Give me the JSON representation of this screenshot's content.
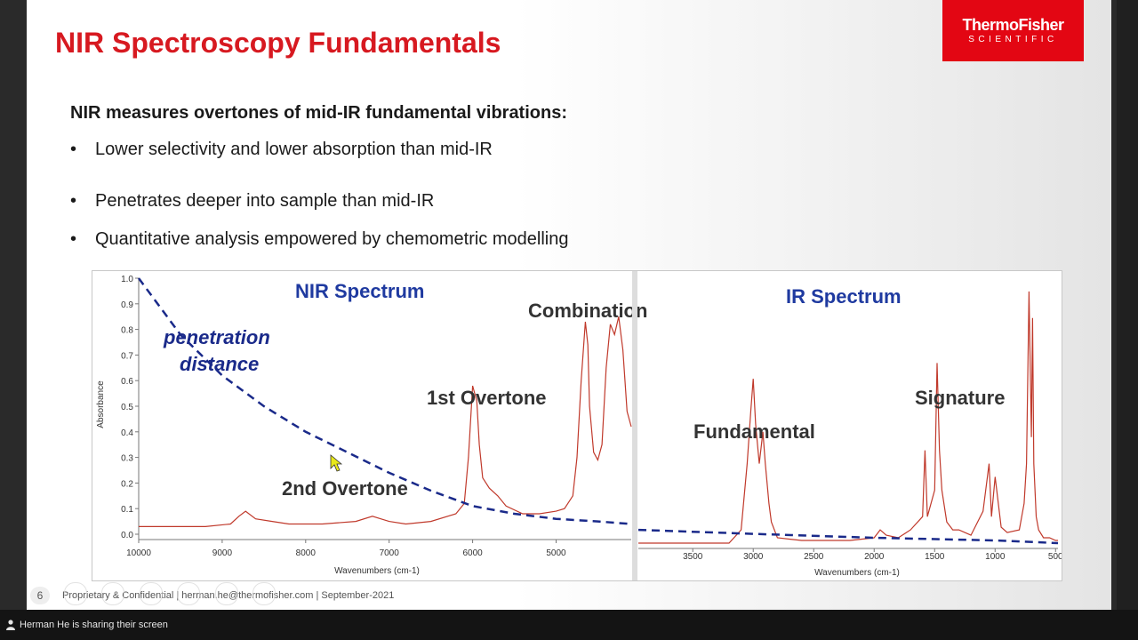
{
  "slide": {
    "title": "NIR Spectroscopy Fundamentals",
    "logo_top": "ThermoFisher",
    "logo_bottom": "SCIENTIFIC",
    "lead": "NIR measures overtones of mid-IR fundamental vibrations:",
    "bullets": [
      "Lower selectivity and lower absorption than mid-IR",
      "Penetrates deeper into sample than mid-IR",
      "Quantitative analysis empowered by chemometric modelling"
    ],
    "page_number": "6",
    "footer": "Proprietary & Confidential | herman.he@thermofisher.com | September-2021"
  },
  "chart_data": [
    {
      "type": "line",
      "title": "NIR Spectrum",
      "xlabel": "Wavenumbers (cm-1)",
      "ylabel": "Absorbance",
      "xlim": [
        10000,
        4100
      ],
      "ylim": [
        0.0,
        1.0
      ],
      "x_ticks": [
        "10000",
        "9000",
        "8000",
        "7000",
        "6000",
        "5000"
      ],
      "y_ticks": [
        "0.0",
        "0.1",
        "0.2",
        "0.3",
        "0.4",
        "0.5",
        "0.6",
        "0.7",
        "0.8",
        "0.9",
        "1.0"
      ],
      "annotations": [
        "penetration distance",
        "2nd Overtone",
        "1st Overtone",
        "Combination"
      ],
      "series": [
        {
          "color": "#c0392b",
          "x": [
            10000,
            9200,
            8900,
            8800,
            8720,
            8600,
            8400,
            8200,
            7800,
            7400,
            7200,
            7100,
            7000,
            6800,
            6500,
            6200,
            6100,
            6050,
            6000,
            5950,
            5920,
            5880,
            5800,
            5700,
            5600,
            5400,
            5200,
            5000,
            4900,
            4800,
            4750,
            4700,
            4650,
            4620,
            4600,
            4550,
            4500,
            4450,
            4400,
            4350,
            4300,
            4250,
            4200,
            4150,
            4100
          ],
          "y": [
            0.03,
            0.03,
            0.04,
            0.07,
            0.09,
            0.06,
            0.05,
            0.04,
            0.04,
            0.05,
            0.07,
            0.06,
            0.05,
            0.04,
            0.05,
            0.08,
            0.12,
            0.3,
            0.58,
            0.52,
            0.35,
            0.22,
            0.18,
            0.15,
            0.11,
            0.08,
            0.08,
            0.09,
            0.1,
            0.15,
            0.3,
            0.6,
            0.83,
            0.74,
            0.5,
            0.32,
            0.29,
            0.35,
            0.65,
            0.82,
            0.78,
            0.85,
            0.72,
            0.48,
            0.42
          ]
        },
        {
          "color": "#1a2a8a",
          "style": "dashed",
          "x": [
            10000,
            9500,
            9000,
            8500,
            8000,
            7500,
            7000,
            6500,
            6000,
            5500,
            5000,
            4500,
            4100
          ],
          "y": [
            1.0,
            0.78,
            0.62,
            0.5,
            0.4,
            0.32,
            0.24,
            0.17,
            0.11,
            0.08,
            0.06,
            0.05,
            0.04
          ]
        }
      ]
    },
    {
      "type": "line",
      "title": "IR Spectrum",
      "xlabel": "Wavenumbers (cm-1)",
      "xlim": [
        3950,
        480
      ],
      "ylim": [
        0.0,
        1.0
      ],
      "x_ticks": [
        "3500",
        "3000",
        "2500",
        "2000",
        "1500",
        "1000",
        "500"
      ],
      "annotations": [
        "Fundamental",
        "Signature"
      ],
      "series": [
        {
          "color": "#c0392b",
          "x": [
            3950,
            3500,
            3200,
            3100,
            3050,
            3020,
            3000,
            2980,
            2950,
            2920,
            2900,
            2870,
            2850,
            2800,
            2600,
            2400,
            2200,
            2000,
            1950,
            1900,
            1800,
            1700,
            1600,
            1580,
            1560,
            1500,
            1480,
            1460,
            1440,
            1400,
            1350,
            1300,
            1200,
            1100,
            1050,
            1030,
            1000,
            950,
            900,
            800,
            760,
            740,
            720,
            700,
            690,
            680,
            660,
            640,
            600,
            550,
            500,
            480
          ],
          "y": [
            0.0,
            0.0,
            0.0,
            0.05,
            0.3,
            0.5,
            0.62,
            0.45,
            0.3,
            0.42,
            0.3,
            0.15,
            0.08,
            0.02,
            0.01,
            0.01,
            0.01,
            0.02,
            0.05,
            0.03,
            0.02,
            0.05,
            0.1,
            0.35,
            0.1,
            0.2,
            0.68,
            0.35,
            0.2,
            0.08,
            0.05,
            0.05,
            0.03,
            0.12,
            0.3,
            0.1,
            0.25,
            0.06,
            0.04,
            0.05,
            0.15,
            0.3,
            0.95,
            0.4,
            0.85,
            0.3,
            0.1,
            0.05,
            0.02,
            0.02,
            0.01,
            0.01
          ]
        },
        {
          "color": "#1a2a8a",
          "style": "dashed",
          "x": [
            3950,
            3000,
            2000,
            1000,
            480
          ],
          "y": [
            0.05,
            0.035,
            0.02,
            0.01,
            0.0
          ]
        }
      ]
    }
  ],
  "status_bar": {
    "text": "Herman He is sharing their screen"
  }
}
